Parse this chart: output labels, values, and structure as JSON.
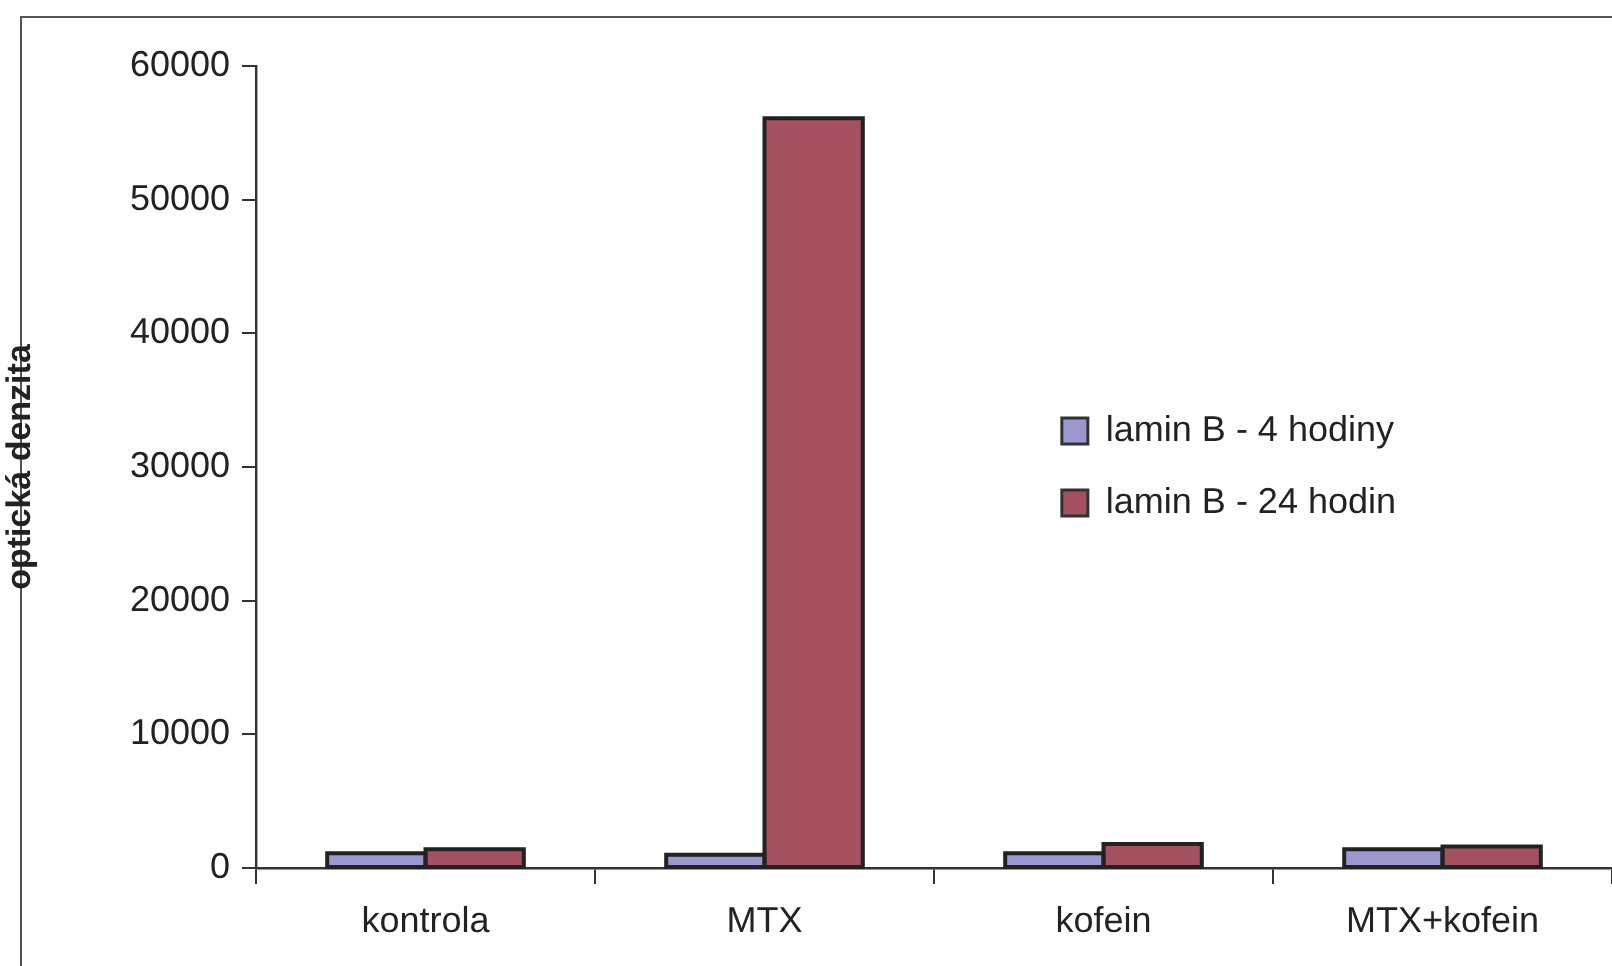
{
  "chart_data": {
    "type": "bar",
    "categories": [
      "kontrola",
      "MTX",
      "kofein",
      "MTX+kofein"
    ],
    "series": [
      {
        "name": "lamin B - 4 hodiny",
        "color": "#9b98cf",
        "values": [
          1100,
          1000,
          1100,
          1400
        ]
      },
      {
        "name": "lamin B - 24 hodin",
        "color": "#a5505f",
        "values": [
          1400,
          56100,
          1800,
          1600
        ]
      }
    ],
    "ylabel": "optická denzita",
    "ylim": [
      0,
      60000
    ],
    "yticks": [
      0,
      10000,
      20000,
      30000,
      40000,
      50000,
      60000
    ],
    "legend": "right"
  }
}
